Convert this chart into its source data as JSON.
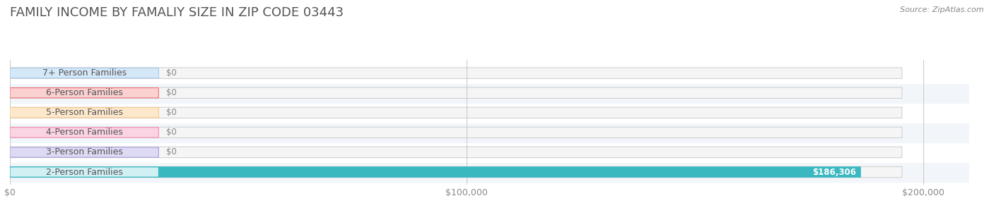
{
  "title": "FAMILY INCOME BY FAMALIY SIZE IN ZIP CODE 03443",
  "source": "Source: ZipAtlas.com",
  "categories": [
    "2-Person Families",
    "3-Person Families",
    "4-Person Families",
    "5-Person Families",
    "6-Person Families",
    "7+ Person Families"
  ],
  "values": [
    186306,
    0,
    0,
    0,
    0,
    0
  ],
  "bar_colors": [
    "#3ab8c0",
    "#a89fd8",
    "#f48cb0",
    "#f8c98a",
    "#f07878",
    "#a8c8e8"
  ],
  "label_bg_colors": [
    "#d0f0f4",
    "#dddaf4",
    "#fbd4e4",
    "#fde8cc",
    "#fbd0d0",
    "#d4e8f8"
  ],
  "value_labels": [
    "$186,306",
    "$0",
    "$0",
    "$0",
    "$0",
    "$0"
  ],
  "xlim": [
    0,
    210000
  ],
  "xticks": [
    0,
    100000,
    200000
  ],
  "xtick_labels": [
    "$0",
    "$100,000",
    "$200,000"
  ],
  "row_colors": [
    "#f2f6fa",
    "#ffffff"
  ],
  "title_fontsize": 13,
  "title_color": "#555555",
  "label_fontsize": 9,
  "value_fontsize": 8.5,
  "bar_height": 0.55,
  "background_color": "#ffffff"
}
